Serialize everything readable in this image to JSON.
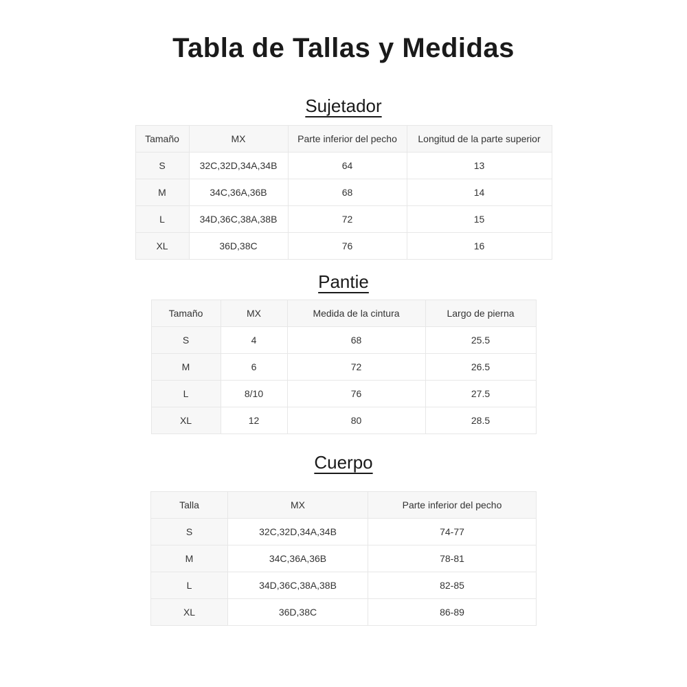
{
  "page": {
    "title": "Tabla de Tallas y Medidas"
  },
  "colors": {
    "background": "#ffffff",
    "header_bg": "#f7f7f7",
    "border": "#e7e7e7",
    "text": "#333333",
    "title": "#1a1a1a"
  },
  "tables": [
    {
      "id": "sujetador",
      "section_title": "Sujetador",
      "columns": [
        "Tamaño",
        "MX",
        "Parte inferior del pecho",
        "Longitud de la parte superior"
      ],
      "rows": [
        [
          "S",
          "32C,32D,34A,34B",
          "64",
          "13"
        ],
        [
          "M",
          "34C,36A,36B",
          "68",
          "14"
        ],
        [
          "L",
          "34D,36C,38A,38B",
          "72",
          "15"
        ],
        [
          "XL",
          "36D,38C",
          "76",
          "16"
        ]
      ]
    },
    {
      "id": "pantie",
      "section_title": "Pantie",
      "columns": [
        "Tamaño",
        "MX",
        "Medida de la cintura",
        "Largo de pierna"
      ],
      "rows": [
        [
          "S",
          "4",
          "68",
          "25.5"
        ],
        [
          "M",
          "6",
          "72",
          "26.5"
        ],
        [
          "L",
          "8/10",
          "76",
          "27.5"
        ],
        [
          "XL",
          "12",
          "80",
          "28.5"
        ]
      ]
    },
    {
      "id": "cuerpo",
      "section_title": "Cuerpo",
      "columns": [
        "Talla",
        "MX",
        "Parte inferior del pecho"
      ],
      "rows": [
        [
          "S",
          "32C,32D,34A,34B",
          "74-77"
        ],
        [
          "M",
          "34C,36A,36B",
          "78-81"
        ],
        [
          "L",
          "34D,36C,38A,38B",
          "82-85"
        ],
        [
          "XL",
          "36D,38C",
          "86-89"
        ]
      ]
    }
  ]
}
